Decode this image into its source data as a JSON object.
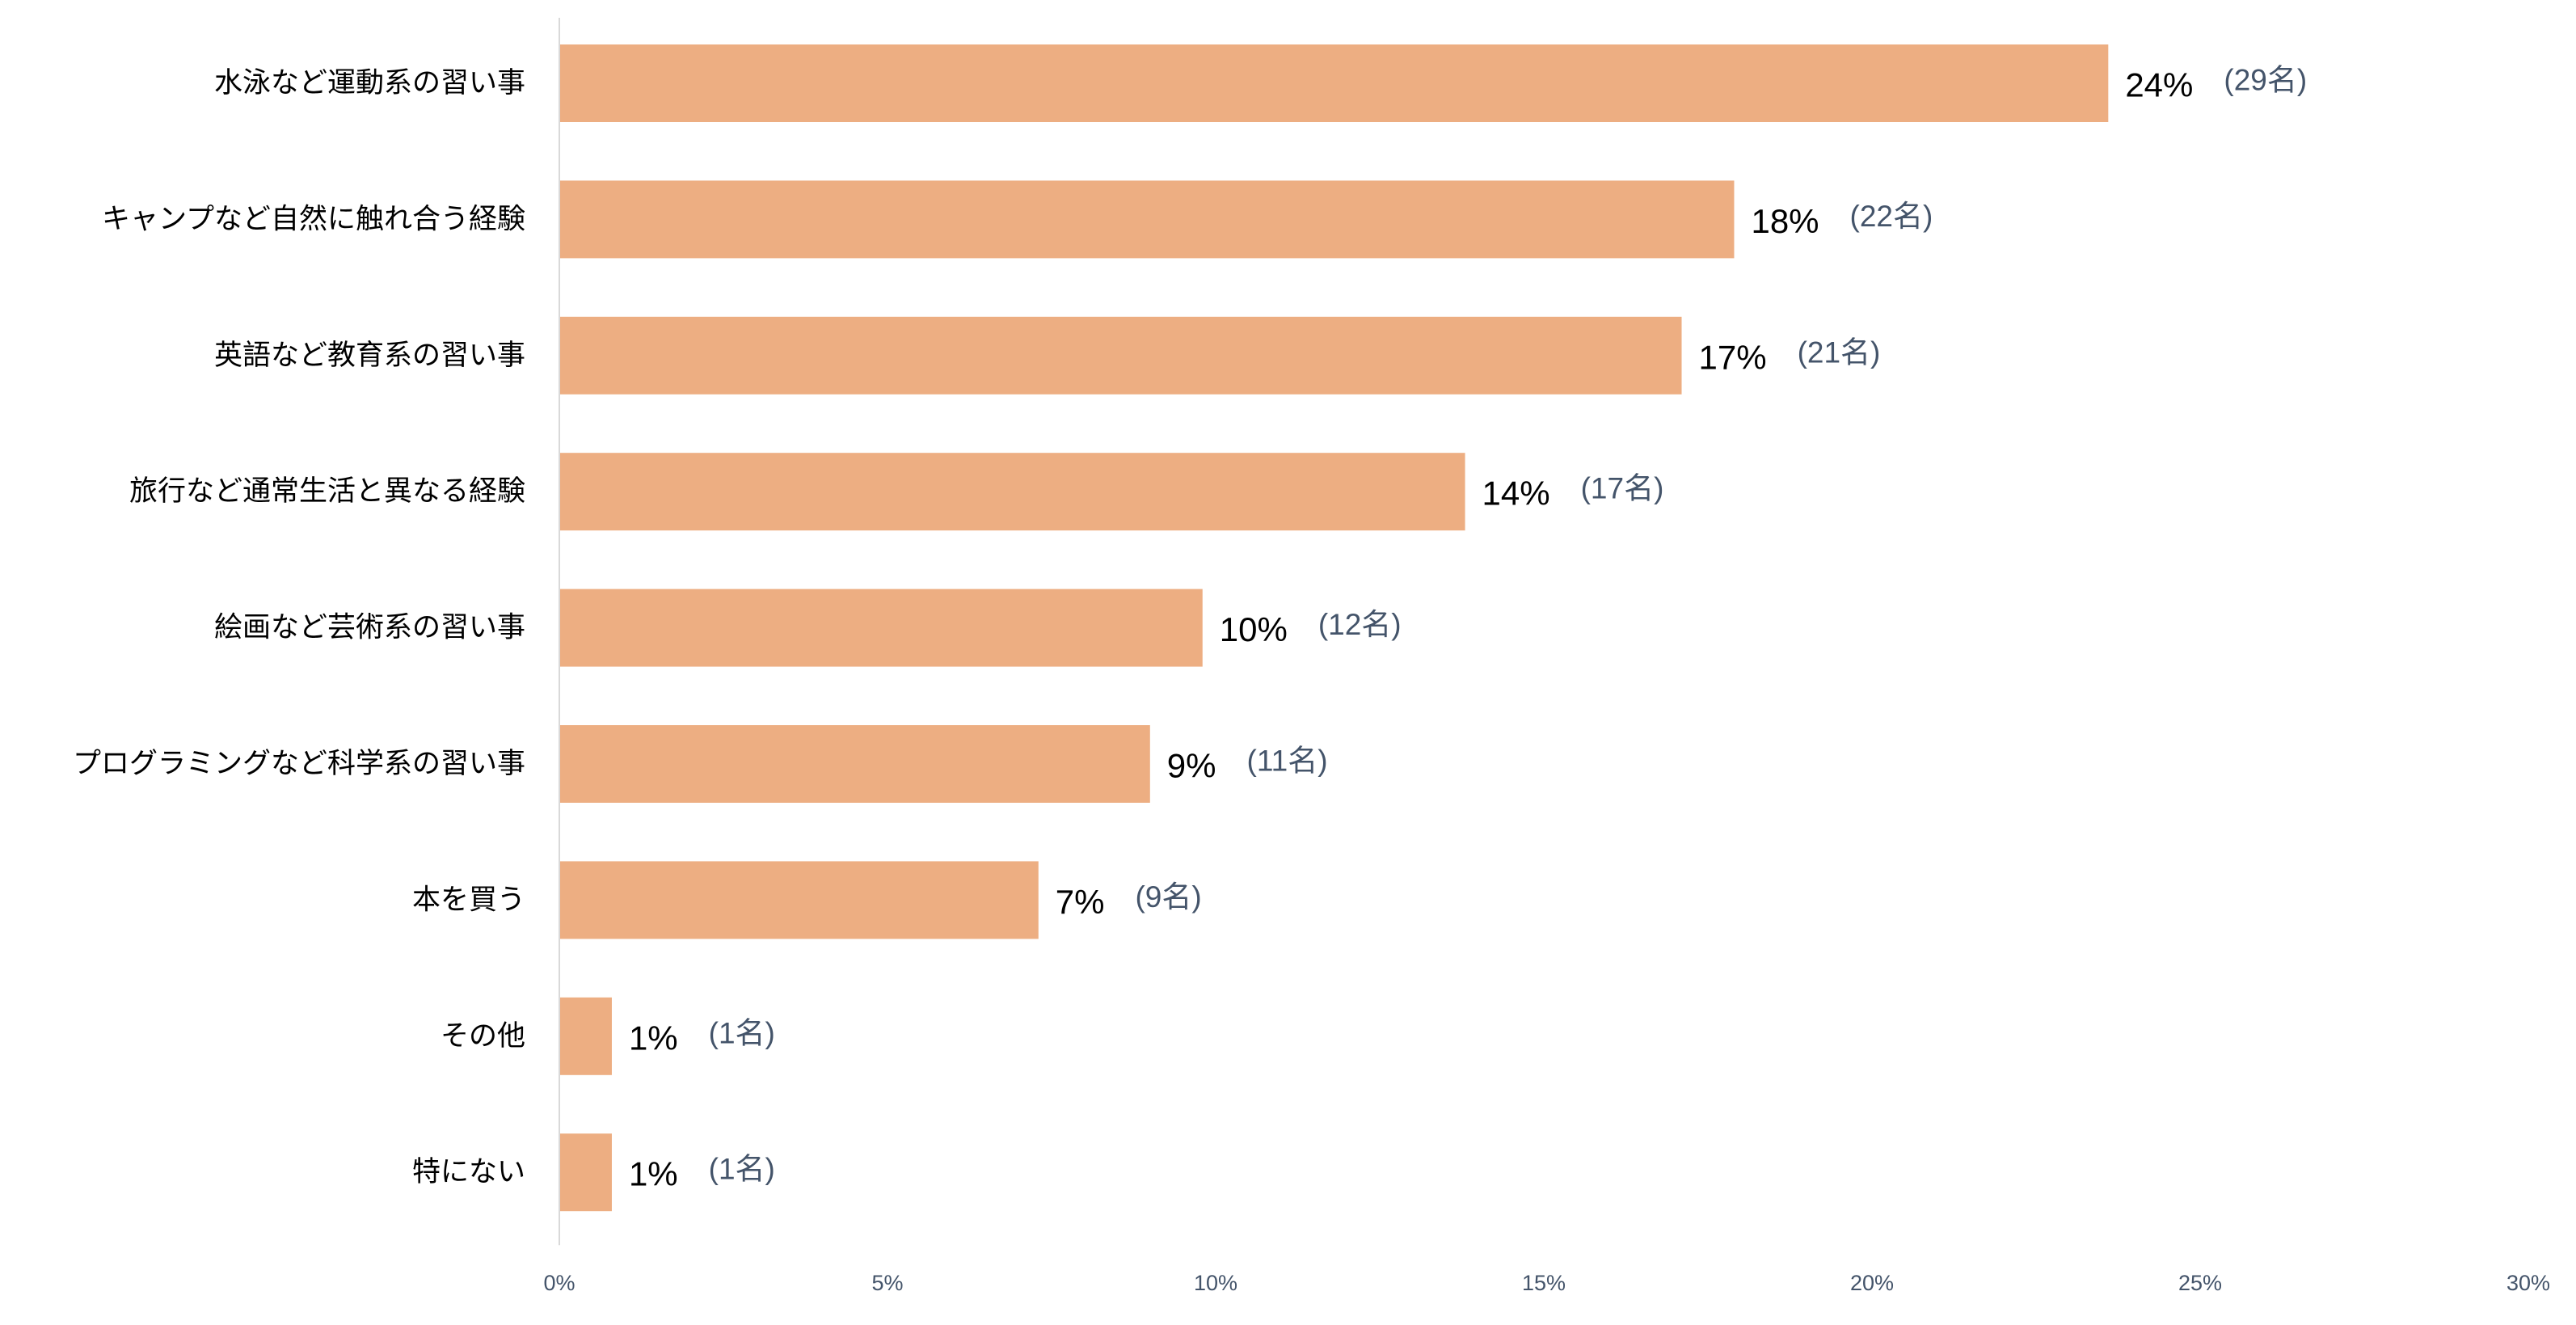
{
  "chart_data": {
    "type": "bar",
    "orientation": "horizontal",
    "categories": [
      "水泳など運動系の習い事",
      "キャンプなど自然に触れ合う経験",
      "英語など教育系の習い事",
      "旅行など通常生活と異なる経験",
      "絵画など芸術系の習い事",
      "プログラミングなど科学系の習い事",
      "本を買う",
      "その他",
      "特にない"
    ],
    "values": [
      23.6,
      17.9,
      17.1,
      13.8,
      9.8,
      9.0,
      7.3,
      0.8,
      0.8
    ],
    "value_labels": [
      "24%",
      "18%",
      "17%",
      "14%",
      "10%",
      "9%",
      "7%",
      "1%",
      "1%"
    ],
    "count_labels": [
      "(29名)",
      "(22名)",
      "(21名)",
      "(17名)",
      "(12名)",
      "(11名)",
      "(9名)",
      "(1名)",
      "(1名)"
    ],
    "xlim": [
      0,
      30
    ],
    "x_ticks": [
      "0%",
      "5%",
      "10%",
      "15%",
      "20%",
      "25%",
      "30%"
    ],
    "bar_color": "#edae82",
    "count_label_color": "#44546a",
    "grid": false,
    "legend": "none"
  }
}
